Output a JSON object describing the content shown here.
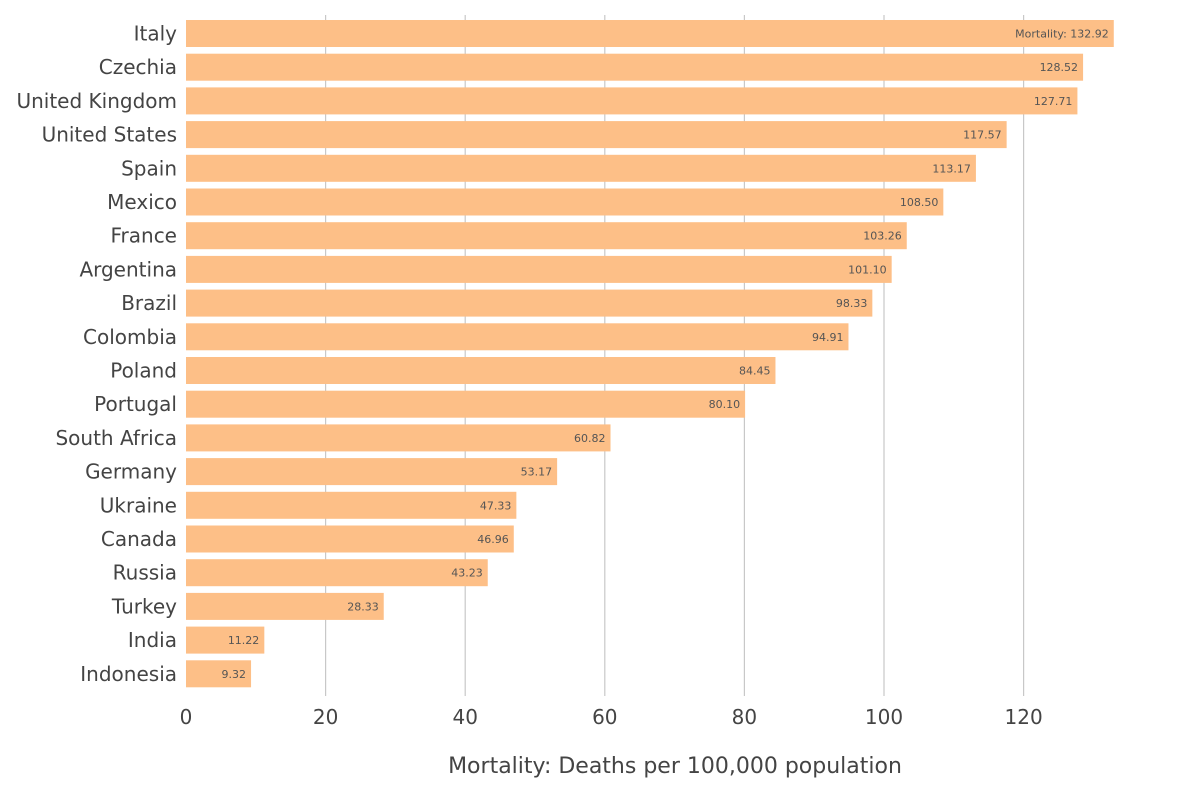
{
  "chart_data": {
    "type": "bar",
    "orientation": "horizontal",
    "categories": [
      "Italy",
      "Czechia",
      "United Kingdom",
      "United States",
      "Spain",
      "Mexico",
      "France",
      "Argentina",
      "Brazil",
      "Colombia",
      "Poland",
      "Portugal",
      "South Africa",
      "Germany",
      "Ukraine",
      "Canada",
      "Russia",
      "Turkey",
      "India",
      "Indonesia"
    ],
    "series": [
      {
        "name": "Mortality",
        "values": [
          132.92,
          128.52,
          127.71,
          117.57,
          113.17,
          108.5,
          103.26,
          101.1,
          98.33,
          94.91,
          84.45,
          80.1,
          60.82,
          53.17,
          47.33,
          46.96,
          43.23,
          28.33,
          11.22,
          9.32
        ],
        "data_labels": [
          "Mortality: 132.92",
          "128.52",
          "127.71",
          "117.57",
          "113.17",
          "108.50",
          "103.26",
          "101.10",
          "98.33",
          "94.91",
          "84.45",
          "80.10",
          "60.82",
          "53.17",
          "47.33",
          "46.96",
          "43.23",
          "28.33",
          "11.22",
          "9.32"
        ],
        "color": "#fdbf87"
      }
    ],
    "xlabel": "Mortality: Deaths per 100,000 population",
    "ylabel": "",
    "xlim": [
      0,
      133
    ],
    "x_ticks": [
      0,
      20,
      40,
      60,
      80,
      100,
      120
    ],
    "grid": "vertical",
    "legend": "none",
    "colors": {
      "bar": "#fdbf87",
      "grid": "#c8c8c8",
      "text": "#444444",
      "data_label": "#555555"
    }
  }
}
